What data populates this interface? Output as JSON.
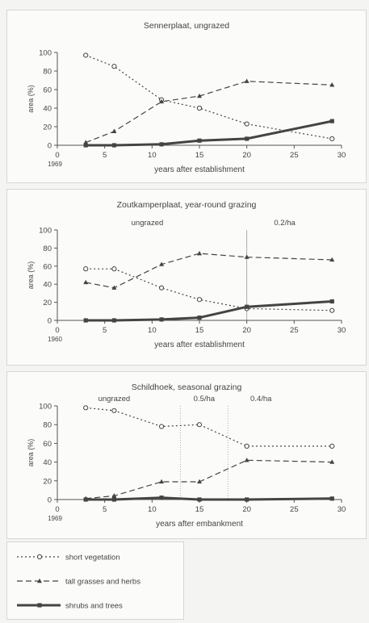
{
  "chart_data": [
    {
      "type": "line",
      "title": "Sennerplaat, ungrazed",
      "xlabel": "years after establishment",
      "ylabel": "area (%)",
      "x_start_label": "1969",
      "xlim": [
        0,
        30
      ],
      "ylim": [
        0,
        100
      ],
      "xticks": [
        0,
        5,
        10,
        15,
        20,
        25,
        30
      ],
      "yticks": [
        0,
        20,
        40,
        60,
        80,
        100
      ],
      "series": [
        {
          "name": "short vegetation",
          "x": [
            3,
            6,
            11,
            15,
            20,
            29
          ],
          "values": [
            97,
            85,
            49,
            40,
            23,
            7
          ]
        },
        {
          "name": "tall grasses and herbs",
          "x": [
            3,
            6,
            11,
            15,
            20,
            29
          ],
          "values": [
            3,
            15,
            47,
            53,
            69,
            65
          ]
        },
        {
          "name": "shrubs and trees",
          "x": [
            3,
            6,
            11,
            15,
            20,
            29
          ],
          "values": [
            0,
            0,
            1,
            5,
            7,
            26
          ]
        }
      ],
      "vlines": [],
      "annotations": []
    },
    {
      "type": "line",
      "title": "Zoutkamperplaat, year-round grazing",
      "xlabel": "years after establishment",
      "ylabel": "area (%)",
      "x_start_label": "1960",
      "xlim": [
        0,
        30
      ],
      "ylim": [
        0,
        100
      ],
      "xticks": [
        0,
        5,
        10,
        15,
        20,
        25,
        30
      ],
      "yticks": [
        0,
        20,
        40,
        60,
        80,
        100
      ],
      "series": [
        {
          "name": "short vegetation",
          "x": [
            3,
            6,
            11,
            15,
            20,
            29
          ],
          "values": [
            57,
            57,
            36,
            23,
            13,
            11
          ]
        },
        {
          "name": "tall grasses and herbs",
          "x": [
            3,
            6,
            11,
            15,
            20,
            29
          ],
          "values": [
            42,
            36,
            62,
            74,
            70,
            67
          ]
        },
        {
          "name": "shrubs and trees",
          "x": [
            3,
            6,
            11,
            15,
            20,
            29
          ],
          "values": [
            0,
            0,
            1,
            3,
            15,
            21
          ]
        }
      ],
      "vlines": [
        20
      ],
      "annotations": [
        {
          "text": "ungrazed",
          "x": 9.5,
          "y": 100
        },
        {
          "text": "0.2/ha",
          "x": 24,
          "y": 100
        }
      ]
    },
    {
      "type": "line",
      "title": "Schildhoek, seasonal grazing",
      "xlabel": "years after embankment",
      "ylabel": "area (%)",
      "x_start_label": "1969",
      "xlim": [
        0,
        30
      ],
      "ylim": [
        0,
        100
      ],
      "xticks": [
        0,
        5,
        10,
        15,
        20,
        25,
        30
      ],
      "yticks": [
        0,
        20,
        40,
        60,
        80,
        100
      ],
      "series": [
        {
          "name": "short vegetation",
          "x": [
            3,
            6,
            11,
            15,
            20,
            29
          ],
          "values": [
            98,
            95,
            78,
            80,
            57,
            57
          ]
        },
        {
          "name": "tall grasses and herbs",
          "x": [
            3,
            6,
            11,
            15,
            20,
            29
          ],
          "values": [
            1,
            4,
            19,
            19,
            42,
            40
          ]
        },
        {
          "name": "shrubs and trees",
          "x": [
            3,
            6,
            11,
            15,
            20,
            29
          ],
          "values": [
            0,
            0,
            2,
            0,
            0,
            1
          ]
        }
      ],
      "vlines": [
        13,
        18
      ],
      "annotations": [
        {
          "text": "ungrazed",
          "x": 6,
          "y": 100
        },
        {
          "text": "0.5/ha",
          "x": 15.5,
          "y": 100
        },
        {
          "text": "0.4/ha",
          "x": 21.5,
          "y": 100
        }
      ]
    }
  ],
  "legend": [
    {
      "label": "short vegetation",
      "style": "dotted",
      "marker": "circle"
    },
    {
      "label": "tall grasses and herbs",
      "style": "dashed",
      "marker": "triangle"
    },
    {
      "label": "shrubs and trees",
      "style": "solid",
      "marker": "square"
    }
  ],
  "colors": {
    "lines": "#444444",
    "axis": "#555555",
    "text": "#444444",
    "vline": "#9a9a9a"
  }
}
